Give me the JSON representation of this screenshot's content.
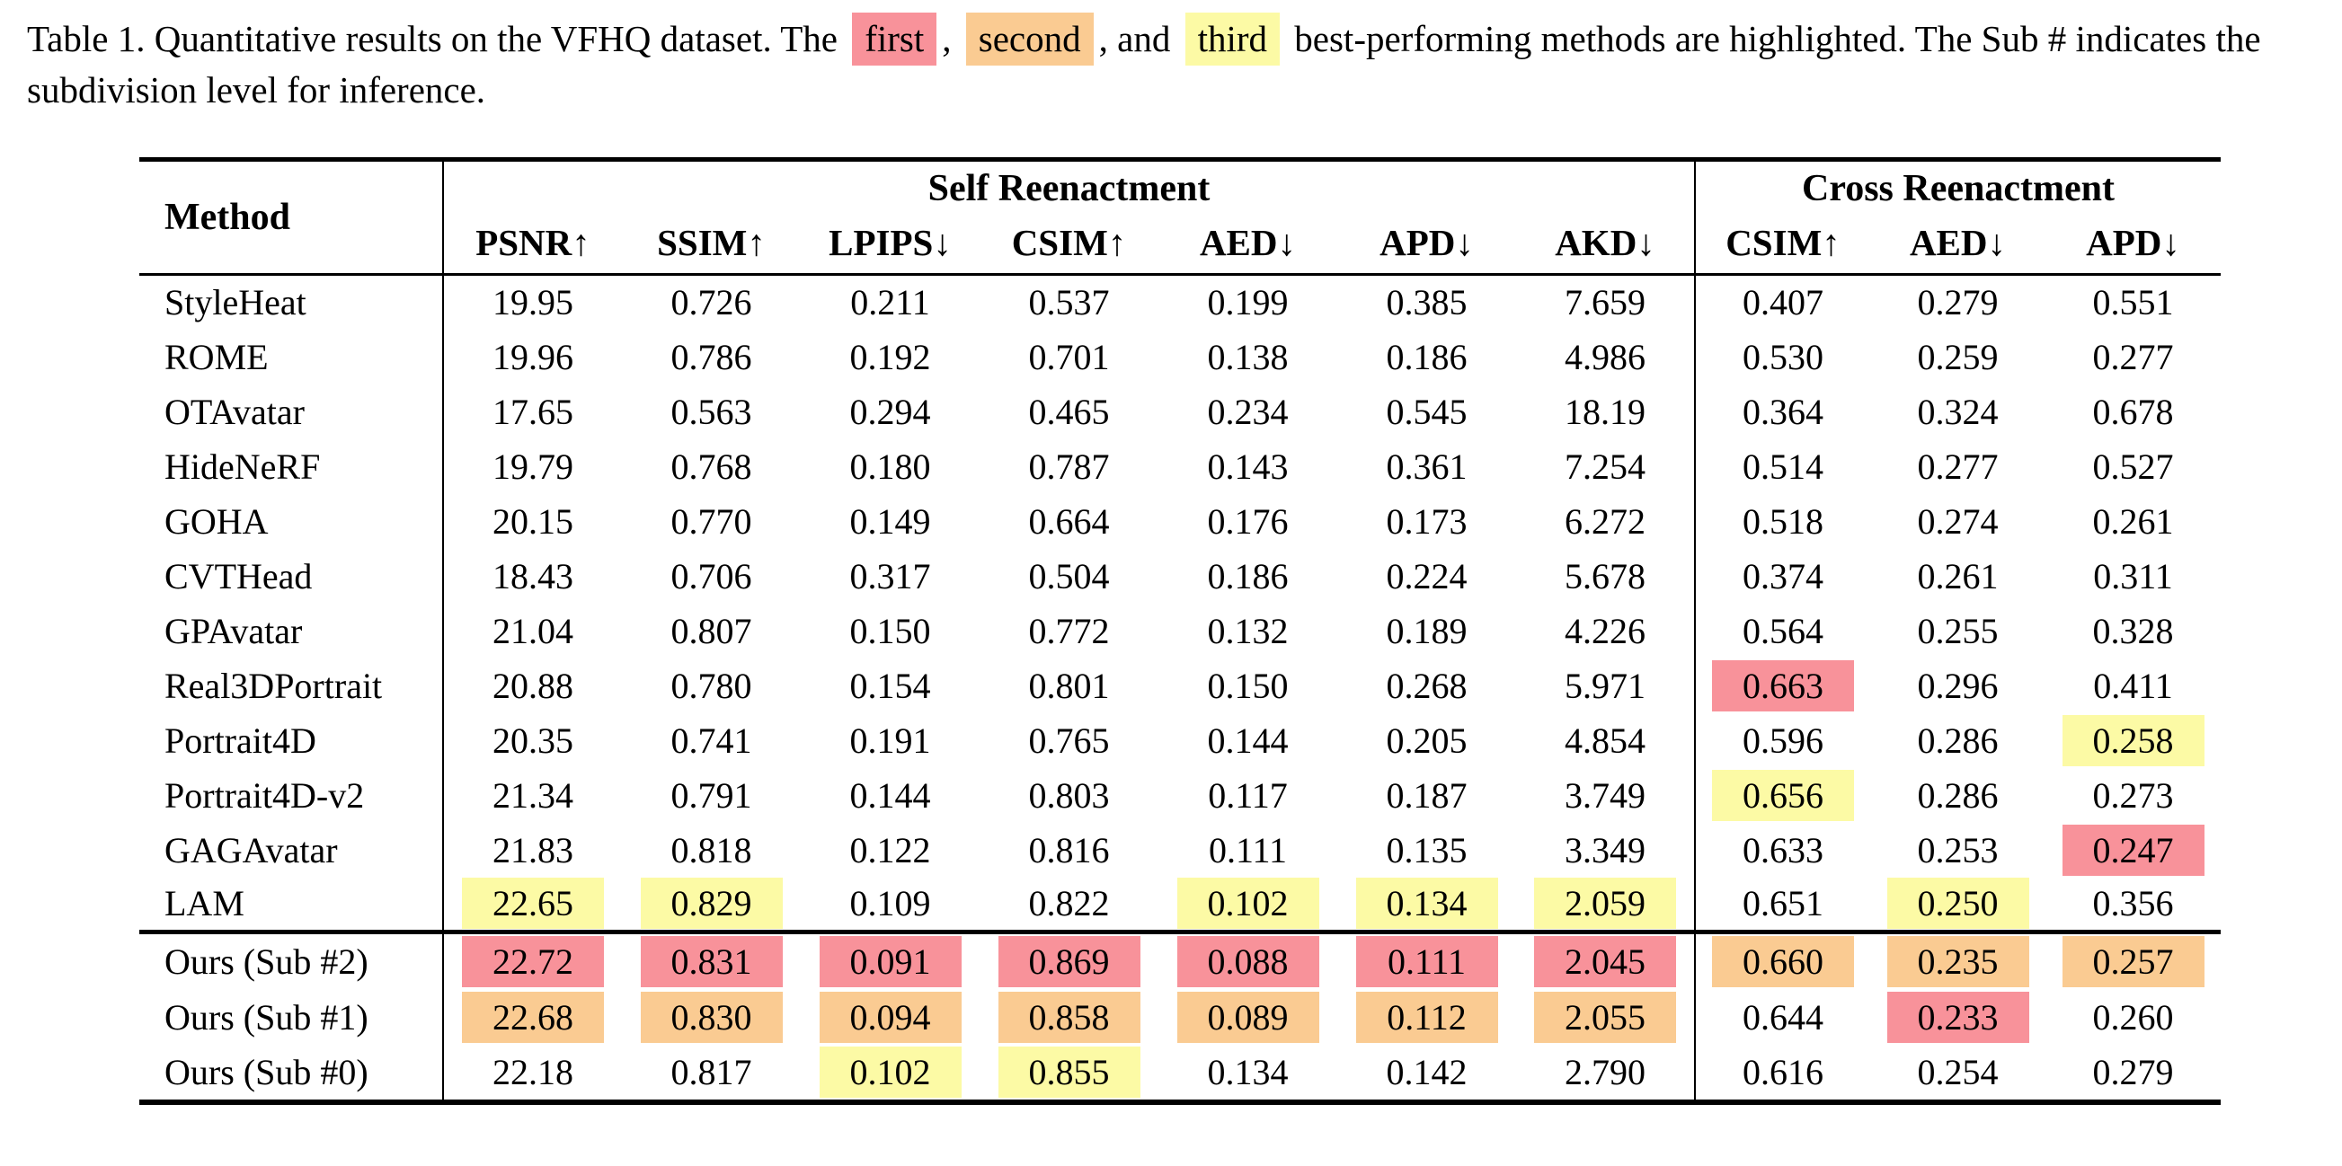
{
  "caption": {
    "prefix": "Table 1. Quantitative results on the VFHQ dataset. The ",
    "first_label": "first",
    "after_first": ", ",
    "second_label": "second",
    "after_second": ", and ",
    "third_label": "third",
    "suffix": " best-performing methods are highlighted. The Sub # indicates the subdivision level for inference."
  },
  "colors": {
    "first": "#f8929a",
    "second": "#facb92",
    "third": "#fcfaa5"
  },
  "table": {
    "method_header": "Method",
    "groups": [
      {
        "label": "Self Reenactment",
        "span": 7,
        "key": "self-reenactment"
      },
      {
        "label": "Cross Reenactment",
        "span": 3,
        "key": "cross-reenactment"
      }
    ],
    "metrics": [
      {
        "label": "PSNR↑",
        "key": "psnr-self"
      },
      {
        "label": "SSIM↑",
        "key": "ssim-self"
      },
      {
        "label": "LPIPS↓",
        "key": "lpips-self"
      },
      {
        "label": "CSIM↑",
        "key": "csim-self"
      },
      {
        "label": "AED↓",
        "key": "aed-self"
      },
      {
        "label": "APD↓",
        "key": "apd-self"
      },
      {
        "label": "AKD↓",
        "key": "akd-self"
      },
      {
        "label": "CSIM↑",
        "key": "csim-cross"
      },
      {
        "label": "AED↓",
        "key": "aed-cross"
      },
      {
        "label": "APD↓",
        "key": "apd-cross"
      }
    ],
    "rows": [
      {
        "method": "StyleHeat",
        "values": [
          "19.95",
          "0.726",
          "0.211",
          "0.537",
          "0.199",
          "0.385",
          "7.659",
          "0.407",
          "0.279",
          "0.551"
        ],
        "highlights": [
          null,
          null,
          null,
          null,
          null,
          null,
          null,
          null,
          null,
          null
        ]
      },
      {
        "method": "ROME",
        "values": [
          "19.96",
          "0.786",
          "0.192",
          "0.701",
          "0.138",
          "0.186",
          "4.986",
          "0.530",
          "0.259",
          "0.277"
        ],
        "highlights": [
          null,
          null,
          null,
          null,
          null,
          null,
          null,
          null,
          null,
          null
        ]
      },
      {
        "method": "OTAvatar",
        "values": [
          "17.65",
          "0.563",
          "0.294",
          "0.465",
          "0.234",
          "0.545",
          "18.19",
          "0.364",
          "0.324",
          "0.678"
        ],
        "highlights": [
          null,
          null,
          null,
          null,
          null,
          null,
          null,
          null,
          null,
          null
        ]
      },
      {
        "method": "HideNeRF",
        "values": [
          "19.79",
          "0.768",
          "0.180",
          "0.787",
          "0.143",
          "0.361",
          "7.254",
          "0.514",
          "0.277",
          "0.527"
        ],
        "highlights": [
          null,
          null,
          null,
          null,
          null,
          null,
          null,
          null,
          null,
          null
        ]
      },
      {
        "method": "GOHA",
        "values": [
          "20.15",
          "0.770",
          "0.149",
          "0.664",
          "0.176",
          "0.173",
          "6.272",
          "0.518",
          "0.274",
          "0.261"
        ],
        "highlights": [
          null,
          null,
          null,
          null,
          null,
          null,
          null,
          null,
          null,
          null
        ]
      },
      {
        "method": "CVTHead",
        "values": [
          "18.43",
          "0.706",
          "0.317",
          "0.504",
          "0.186",
          "0.224",
          "5.678",
          "0.374",
          "0.261",
          "0.311"
        ],
        "highlights": [
          null,
          null,
          null,
          null,
          null,
          null,
          null,
          null,
          null,
          null
        ]
      },
      {
        "method": "GPAvatar",
        "values": [
          "21.04",
          "0.807",
          "0.150",
          "0.772",
          "0.132",
          "0.189",
          "4.226",
          "0.564",
          "0.255",
          "0.328"
        ],
        "highlights": [
          null,
          null,
          null,
          null,
          null,
          null,
          null,
          null,
          null,
          null
        ]
      },
      {
        "method": "Real3DPortrait",
        "values": [
          "20.88",
          "0.780",
          "0.154",
          "0.801",
          "0.150",
          "0.268",
          "5.971",
          "0.663",
          "0.296",
          "0.411"
        ],
        "highlights": [
          null,
          null,
          null,
          null,
          null,
          null,
          null,
          "first",
          null,
          null
        ]
      },
      {
        "method": "Portrait4D",
        "values": [
          "20.35",
          "0.741",
          "0.191",
          "0.765",
          "0.144",
          "0.205",
          "4.854",
          "0.596",
          "0.286",
          "0.258"
        ],
        "highlights": [
          null,
          null,
          null,
          null,
          null,
          null,
          null,
          null,
          null,
          "third"
        ]
      },
      {
        "method": "Portrait4D-v2",
        "values": [
          "21.34",
          "0.791",
          "0.144",
          "0.803",
          "0.117",
          "0.187",
          "3.749",
          "0.656",
          "0.286",
          "0.273"
        ],
        "highlights": [
          null,
          null,
          null,
          null,
          null,
          null,
          null,
          "third",
          null,
          null
        ]
      },
      {
        "method": "GAGAvatar",
        "values": [
          "21.83",
          "0.818",
          "0.122",
          "0.816",
          "0.111",
          "0.135",
          "3.349",
          "0.633",
          "0.253",
          "0.247"
        ],
        "highlights": [
          null,
          null,
          null,
          null,
          null,
          null,
          null,
          null,
          null,
          "first"
        ]
      },
      {
        "method": "LAM",
        "values": [
          "22.65",
          "0.829",
          "0.109",
          "0.822",
          "0.102",
          "0.134",
          "2.059",
          "0.651",
          "0.250",
          "0.356"
        ],
        "highlights": [
          "third",
          "third",
          null,
          null,
          "third",
          "third",
          "third",
          null,
          "third",
          null
        ]
      }
    ],
    "ours_rows": [
      {
        "method": "Ours (Sub #2)",
        "values": [
          "22.72",
          "0.831",
          "0.091",
          "0.869",
          "0.088",
          "0.111",
          "2.045",
          "0.660",
          "0.235",
          "0.257"
        ],
        "highlights": [
          "first",
          "first",
          "first",
          "first",
          "first",
          "first",
          "first",
          "second",
          "second",
          "second"
        ]
      },
      {
        "method": "Ours (Sub #1)",
        "values": [
          "22.68",
          "0.830",
          "0.094",
          "0.858",
          "0.089",
          "0.112",
          "2.055",
          "0.644",
          "0.233",
          "0.260"
        ],
        "highlights": [
          "second",
          "second",
          "second",
          "second",
          "second",
          "second",
          "second",
          null,
          "first",
          null
        ]
      },
      {
        "method": "Ours (Sub #0)",
        "values": [
          "22.18",
          "0.817",
          "0.102",
          "0.855",
          "0.134",
          "0.142",
          "2.790",
          "0.616",
          "0.254",
          "0.279"
        ],
        "highlights": [
          null,
          null,
          "third",
          "third",
          null,
          null,
          null,
          null,
          null,
          null
        ]
      }
    ]
  }
}
